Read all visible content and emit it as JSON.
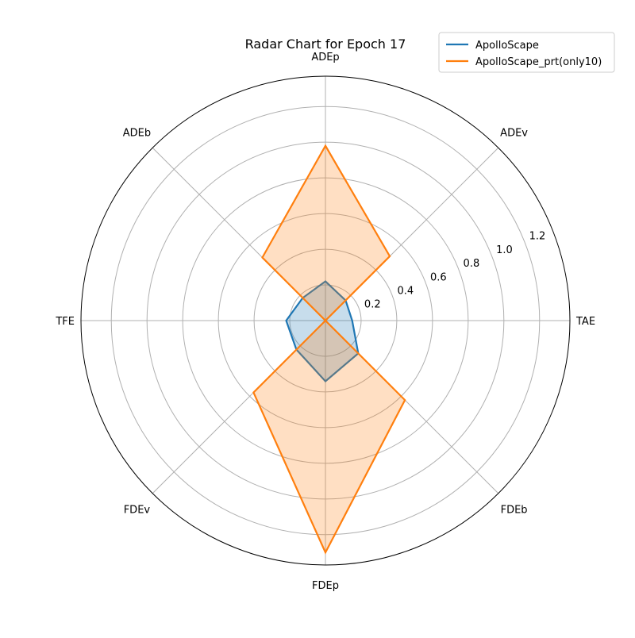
{
  "chart_data": {
    "type": "radar",
    "title": "Radar Chart for Epoch 17",
    "axes": [
      "ADEp",
      "ADEv",
      "TAE",
      "FDEb",
      "FDEp",
      "FDEv",
      "TFE",
      "ADEb"
    ],
    "rmax": 1.37,
    "rticks": [
      0.2,
      0.4,
      0.6,
      0.8,
      1.0,
      1.2
    ],
    "rtick_labels": [
      "0.2",
      "0.4",
      "0.6",
      "0.8",
      "1.0",
      "1.2"
    ],
    "grid": true,
    "legend_position": "top-right",
    "series": [
      {
        "name": "ApolloScape",
        "color": "#1f77b4",
        "values": [
          0.22,
          0.16,
          0.15,
          0.26,
          0.34,
          0.23,
          0.22,
          0.18
        ]
      },
      {
        "name": "ApolloScape_prt(only10)",
        "color": "#ff7f0e",
        "values": [
          0.98,
          0.51,
          0.0,
          0.63,
          1.3,
          0.57,
          0.0,
          0.5
        ]
      }
    ]
  }
}
